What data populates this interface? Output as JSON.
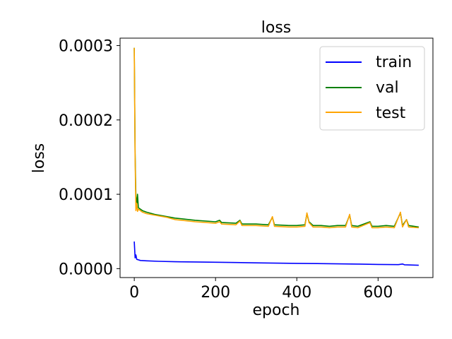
{
  "chart_data": {
    "type": "line",
    "title": "loss",
    "xlabel": "epoch",
    "ylabel": "loss",
    "xlim": [
      -35,
      735
    ],
    "ylim": [
      -1.2e-05,
      0.00031
    ],
    "xticks": [
      0,
      200,
      400,
      600
    ],
    "xtick_labels": [
      "0",
      "200",
      "400",
      "600"
    ],
    "yticks": [
      0,
      0.0001,
      0.0002,
      0.0003
    ],
    "ytick_labels": [
      "0.0000",
      "0.0001",
      "0.0002",
      "0.0003"
    ],
    "grid": false,
    "legend_position": "top-right",
    "series": [
      {
        "name": "train",
        "color": "#0000ff",
        "points": [
          [
            0,
            3.65e-05
          ],
          [
            2,
            1.45e-05
          ],
          [
            4,
            1.85e-05
          ],
          [
            6,
            1.25e-05
          ],
          [
            10,
            1.18e-05
          ],
          [
            15,
            1.1e-05
          ],
          [
            30,
            1.05e-05
          ],
          [
            60,
            9.8e-06
          ],
          [
            100,
            9.3e-06
          ],
          [
            150,
            9e-06
          ],
          [
            200,
            8.6e-06
          ],
          [
            250,
            8.2e-06
          ],
          [
            300,
            7.8e-06
          ],
          [
            350,
            7.4e-06
          ],
          [
            400,
            7.1e-06
          ],
          [
            450,
            6.8e-06
          ],
          [
            500,
            6.4e-06
          ],
          [
            550,
            6.1e-06
          ],
          [
            600,
            5.7e-06
          ],
          [
            650,
            5.4e-06
          ],
          [
            660,
            6.2e-06
          ],
          [
            665,
            5.2e-06
          ],
          [
            700,
            4.5e-06
          ]
        ]
      },
      {
        "name": "val",
        "color": "#008000",
        "points": [
          [
            0,
            0.000297
          ],
          [
            2,
            0.000155
          ],
          [
            4,
            9.8e-05
          ],
          [
            6,
            8.5e-05
          ],
          [
            8,
            0.0001
          ],
          [
            10,
            8.2e-05
          ],
          [
            15,
            8e-05
          ],
          [
            20,
            7.8e-05
          ],
          [
            30,
            7.6e-05
          ],
          [
            50,
            7.3e-05
          ],
          [
            80,
            7e-05
          ],
          [
            100,
            6.8e-05
          ],
          [
            150,
            6.5e-05
          ],
          [
            200,
            6.3e-05
          ],
          [
            210,
            6.5e-05
          ],
          [
            215,
            6.2e-05
          ],
          [
            250,
            6.1e-05
          ],
          [
            260,
            6.5e-05
          ],
          [
            265,
            6e-05
          ],
          [
            300,
            6e-05
          ],
          [
            330,
            5.9e-05
          ],
          [
            340,
            6.9e-05
          ],
          [
            345,
            5.9e-05
          ],
          [
            380,
            5.8e-05
          ],
          [
            400,
            5.8e-05
          ],
          [
            420,
            5.9e-05
          ],
          [
            425,
            7.4e-05
          ],
          [
            430,
            6.3e-05
          ],
          [
            440,
            5.8e-05
          ],
          [
            460,
            5.8e-05
          ],
          [
            480,
            5.7e-05
          ],
          [
            500,
            5.8e-05
          ],
          [
            520,
            5.8e-05
          ],
          [
            530,
            7.2e-05
          ],
          [
            535,
            5.8e-05
          ],
          [
            550,
            5.7e-05
          ],
          [
            580,
            6.3e-05
          ],
          [
            585,
            5.7e-05
          ],
          [
            600,
            5.7e-05
          ],
          [
            620,
            5.8e-05
          ],
          [
            640,
            5.7e-05
          ],
          [
            655,
            7.5e-05
          ],
          [
            660,
            5.8e-05
          ],
          [
            670,
            6.6e-05
          ],
          [
            675,
            5.8e-05
          ],
          [
            700,
            5.6e-05
          ]
        ]
      },
      {
        "name": "test",
        "color": "#ffa500",
        "points": [
          [
            0,
            0.000297
          ],
          [
            2,
            0.00015
          ],
          [
            4,
            7.8e-05
          ],
          [
            6,
            8.8e-05
          ],
          [
            8,
            7.7e-05
          ],
          [
            10,
            8e-05
          ],
          [
            15,
            7.8e-05
          ],
          [
            20,
            7.6e-05
          ],
          [
            30,
            7.4e-05
          ],
          [
            50,
            7.2e-05
          ],
          [
            80,
            6.9e-05
          ],
          [
            100,
            6.6e-05
          ],
          [
            150,
            6.3e-05
          ],
          [
            200,
            6.1e-05
          ],
          [
            210,
            6.3e-05
          ],
          [
            215,
            6e-05
          ],
          [
            250,
            5.9e-05
          ],
          [
            260,
            6.4e-05
          ],
          [
            265,
            5.8e-05
          ],
          [
            300,
            5.8e-05
          ],
          [
            330,
            5.7e-05
          ],
          [
            340,
            7e-05
          ],
          [
            345,
            5.7e-05
          ],
          [
            380,
            5.6e-05
          ],
          [
            400,
            5.6e-05
          ],
          [
            420,
            5.7e-05
          ],
          [
            425,
            7.5e-05
          ],
          [
            430,
            6.2e-05
          ],
          [
            440,
            5.6e-05
          ],
          [
            460,
            5.6e-05
          ],
          [
            480,
            5.5e-05
          ],
          [
            500,
            5.6e-05
          ],
          [
            520,
            5.6e-05
          ],
          [
            530,
            7.3e-05
          ],
          [
            535,
            5.6e-05
          ],
          [
            550,
            5.5e-05
          ],
          [
            580,
            6.2e-05
          ],
          [
            585,
            5.5e-05
          ],
          [
            600,
            5.5e-05
          ],
          [
            620,
            5.6e-05
          ],
          [
            640,
            5.5e-05
          ],
          [
            655,
            7.6e-05
          ],
          [
            660,
            5.6e-05
          ],
          [
            670,
            6.6e-05
          ],
          [
            675,
            5.6e-05
          ],
          [
            700,
            5.5e-05
          ]
        ]
      }
    ]
  }
}
